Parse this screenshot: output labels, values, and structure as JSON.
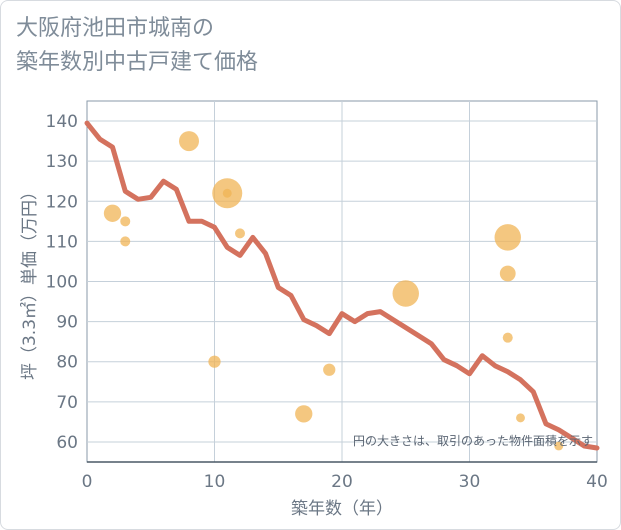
{
  "title_line1": "大阪府池田市城南の",
  "title_line2": "築年数別中古戸建て価格",
  "note": "円の大きさは、取引のあった物件面積を示す",
  "colors": {
    "line": "#d4725e",
    "bubble": "#f0b456",
    "grid": "#c5d0da",
    "axis": "#8a9aaa"
  },
  "chart_data": {
    "type": "scatter",
    "xlabel": "築年数（年）",
    "ylabel": "坪（3.3㎡）単価（万円）",
    "xlim": [
      0,
      40
    ],
    "ylim": [
      55,
      145
    ],
    "xticks": [
      0,
      10,
      20,
      30,
      40
    ],
    "yticks": [
      60,
      70,
      80,
      90,
      100,
      110,
      120,
      130,
      140
    ],
    "line": {
      "x": [
        0,
        1,
        2,
        3,
        4,
        5,
        6,
        7,
        8,
        9,
        10,
        11,
        12,
        13,
        14,
        15,
        16,
        17,
        18,
        19,
        20,
        21,
        22,
        23,
        24,
        25,
        26,
        27,
        28,
        29,
        30,
        31,
        32,
        33,
        34,
        35,
        36,
        37,
        38,
        39,
        40
      ],
      "y": [
        139.5,
        135.5,
        133.5,
        122.5,
        120.5,
        121,
        125,
        123,
        115,
        115,
        113.5,
        108.5,
        106.5,
        111,
        107,
        98.5,
        96.5,
        90.5,
        89,
        87,
        92,
        90,
        92,
        92.5,
        90.5,
        88.5,
        86.5,
        84.5,
        80.5,
        79,
        77,
        81.5,
        79,
        77.5,
        75.5,
        72.5,
        64.5,
        63,
        61,
        59,
        58.5
      ]
    },
    "bubbles": [
      {
        "x": 2,
        "y": 117,
        "size": 3
      },
      {
        "x": 3,
        "y": 115,
        "size": 1
      },
      {
        "x": 3,
        "y": 110,
        "size": 1
      },
      {
        "x": 8,
        "y": 135,
        "size": 4
      },
      {
        "x": 10,
        "y": 80,
        "size": 1.5
      },
      {
        "x": 11,
        "y": 122,
        "size": 9
      },
      {
        "x": 11,
        "y": 122,
        "size": 0.8
      },
      {
        "x": 12,
        "y": 112,
        "size": 1
      },
      {
        "x": 17,
        "y": 67,
        "size": 3
      },
      {
        "x": 19,
        "y": 78,
        "size": 1.5
      },
      {
        "x": 25,
        "y": 97,
        "size": 7
      },
      {
        "x": 33,
        "y": 111,
        "size": 7
      },
      {
        "x": 33,
        "y": 102,
        "size": 2.5
      },
      {
        "x": 33,
        "y": 86,
        "size": 1
      },
      {
        "x": 34,
        "y": 66,
        "size": 0.8
      },
      {
        "x": 37,
        "y": 59,
        "size": 0.8
      }
    ]
  }
}
